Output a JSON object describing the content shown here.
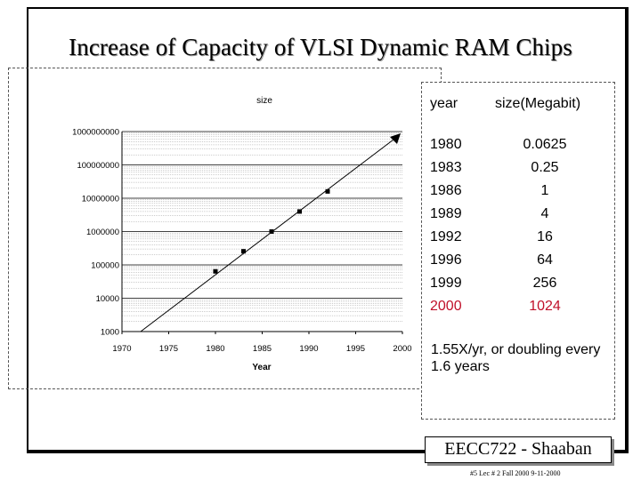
{
  "slide": {
    "title": "Increase of Capacity of VLSI Dynamic RAM Chips",
    "footer": "EECC722 - Shaaban",
    "footnote": "#5   Lec # 2   Fall 2000 9-11-2000"
  },
  "table": {
    "headers": [
      "year",
      "size(Megabit)"
    ],
    "rows": [
      {
        "year": "1980",
        "size": "0.0625",
        "highlight": false
      },
      {
        "year": "1983",
        "size": "0.25",
        "highlight": false
      },
      {
        "year": "1986",
        "size": "1",
        "highlight": false
      },
      {
        "year": "1989",
        "size": "4",
        "highlight": false
      },
      {
        "year": "1992",
        "size": "16",
        "highlight": false
      },
      {
        "year": "1996",
        "size": "64",
        "highlight": false
      },
      {
        "year": "1999",
        "size": "256",
        "highlight": false
      },
      {
        "year": "2000",
        "size": "1024",
        "highlight": true
      }
    ],
    "note": "1.55X/yr, or doubling every 1.6 years"
  },
  "chart_data": {
    "type": "scatter",
    "title": "size",
    "xlabel": "Year",
    "ylabel": "",
    "scale_y": "log",
    "xlim": [
      1970,
      2000
    ],
    "ylim": [
      1000,
      1000000000
    ],
    "x_ticks": [
      "1970",
      "1975",
      "1980",
      "1985",
      "1990",
      "1995",
      "2000"
    ],
    "y_ticks": [
      "1000",
      "10000",
      "100000",
      "1000000",
      "10000000",
      "100000000",
      "1000000000"
    ],
    "points": [
      {
        "x": 1980,
        "y": 64000
      },
      {
        "x": 1983,
        "y": 256000
      },
      {
        "x": 1986,
        "y": 1000000
      },
      {
        "x": 1989,
        "y": 4000000
      },
      {
        "x": 1992,
        "y": 16000000
      }
    ],
    "trend": {
      "x": [
        1972,
        2000
      ],
      "y": [
        1000,
        1000000000
      ]
    },
    "grid": true
  },
  "colors": {
    "highlight": "#c0102a",
    "text": "#000000",
    "grid": "#9a9a9a"
  }
}
